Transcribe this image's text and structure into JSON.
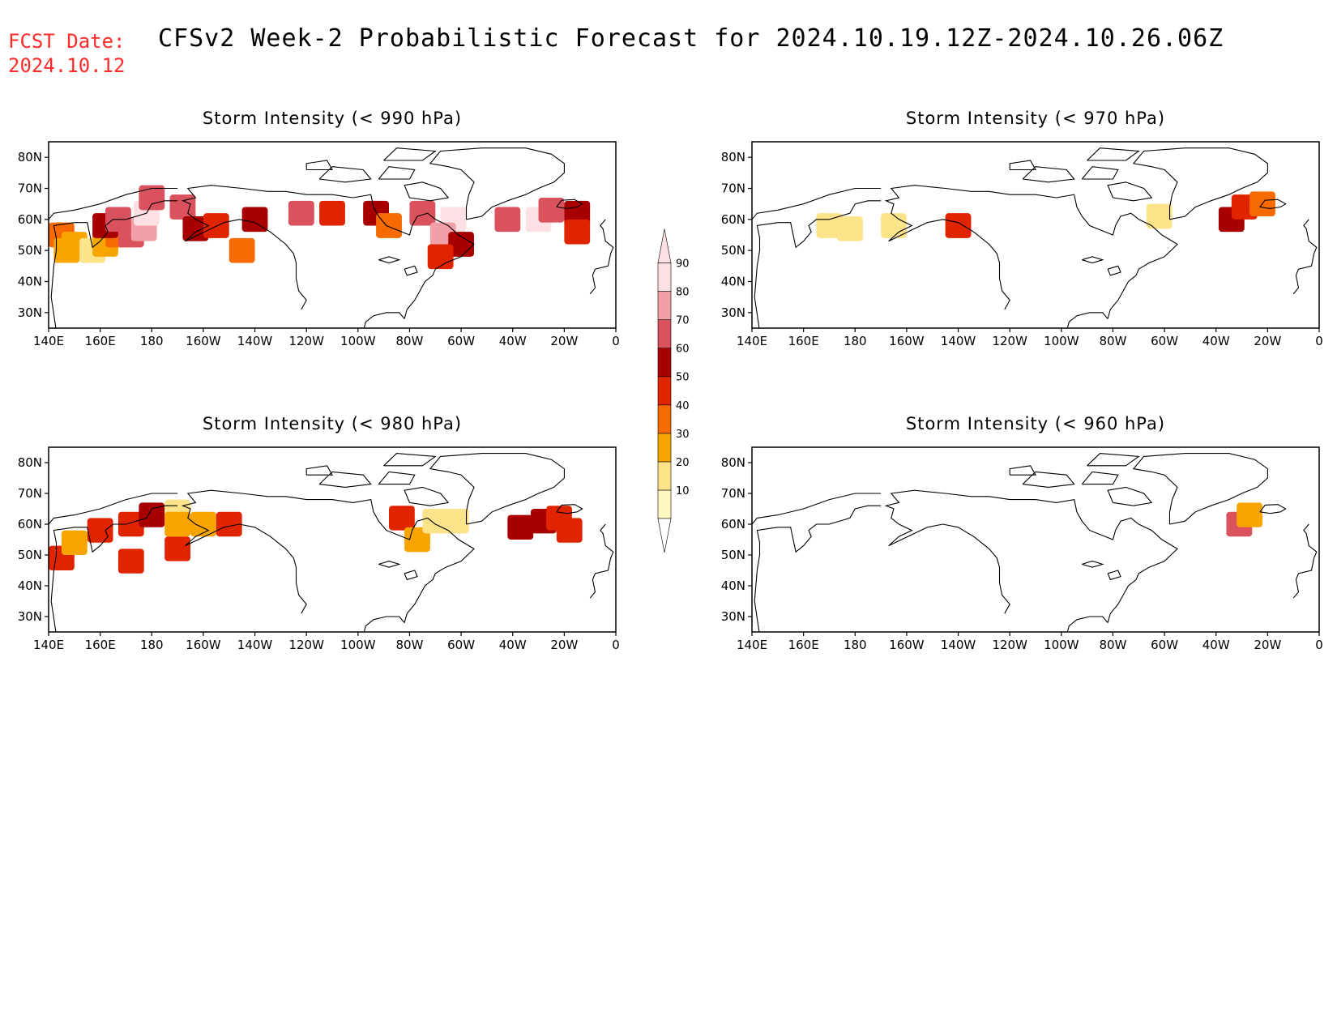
{
  "header": {
    "fcst_label": "FCST Date:",
    "fcst_date": "2024.10.12",
    "title": "CFSv2 Week-2 Probabilistic Forecast for 2024.10.19.12Z-2024.10.26.06Z"
  },
  "map_axes": {
    "lon_labels": [
      "140E",
      "160E",
      "180",
      "160W",
      "140W",
      "120W",
      "100W",
      "80W",
      "60W",
      "40W",
      "20W",
      "0"
    ],
    "lat_labels": [
      "80N",
      "70N",
      "60N",
      "50N",
      "40N",
      "30N"
    ],
    "lat_values": [
      80,
      70,
      60,
      50,
      40,
      30
    ],
    "lon_range": [
      140,
      360
    ],
    "lat_range": [
      25,
      85
    ]
  },
  "colorbar": {
    "levels": [
      "10",
      "20",
      "30",
      "40",
      "50",
      "60",
      "70",
      "80",
      "90"
    ],
    "colors": [
      "#fff7c0",
      "#fde38a",
      "#f9a500",
      "#f66a00",
      "#e12400",
      "#a80000",
      "#d9525e",
      "#f0a0a6",
      "#fde0e3"
    ]
  },
  "chart_data": [
    {
      "type": "heatmap",
      "title": "Storm Intensity (< 990 hPa)",
      "cells": [
        {
          "lon": 145,
          "lat": 55,
          "v": 3
        },
        {
          "lon": 150,
          "lat": 52,
          "v": 2
        },
        {
          "lon": 147,
          "lat": 50,
          "v": 2
        },
        {
          "lon": 157,
          "lat": 50,
          "v": 1
        },
        {
          "lon": 162,
          "lat": 52,
          "v": 2
        },
        {
          "lon": 167,
          "lat": 55,
          "v": 3
        },
        {
          "lon": 172,
          "lat": 55,
          "v": 6
        },
        {
          "lon": 177,
          "lat": 57,
          "v": 7
        },
        {
          "lon": 162,
          "lat": 58,
          "v": 5
        },
        {
          "lon": 167,
          "lat": 60,
          "v": 6
        },
        {
          "lon": 178,
          "lat": 62,
          "v": 8
        },
        {
          "lon": 180,
          "lat": 67,
          "v": 6
        },
        {
          "lon": 192,
          "lat": 64,
          "v": 6
        },
        {
          "lon": 197,
          "lat": 57,
          "v": 5
        },
        {
          "lon": 205,
          "lat": 58,
          "v": 4
        },
        {
          "lon": 220,
          "lat": 60,
          "v": 5
        },
        {
          "lon": 215,
          "lat": 50,
          "v": 3
        },
        {
          "lon": 238,
          "lat": 62,
          "v": 6
        },
        {
          "lon": 250,
          "lat": 62,
          "v": 4
        },
        {
          "lon": 267,
          "lat": 62,
          "v": 5
        },
        {
          "lon": 272,
          "lat": 58,
          "v": 3
        },
        {
          "lon": 285,
          "lat": 62,
          "v": 6
        },
        {
          "lon": 297,
          "lat": 60,
          "v": 8
        },
        {
          "lon": 293,
          "lat": 55,
          "v": 7
        },
        {
          "lon": 300,
          "lat": 52,
          "v": 5
        },
        {
          "lon": 292,
          "lat": 48,
          "v": 4
        },
        {
          "lon": 318,
          "lat": 60,
          "v": 6
        },
        {
          "lon": 330,
          "lat": 60,
          "v": 8
        },
        {
          "lon": 335,
          "lat": 63,
          "v": 6
        },
        {
          "lon": 345,
          "lat": 62,
          "v": 5
        },
        {
          "lon": 345,
          "lat": 56,
          "v": 4
        }
      ]
    },
    {
      "type": "heatmap",
      "title": "Storm Intensity (< 970 hPa)",
      "cells": [
        {
          "lon": 170,
          "lat": 58,
          "v": 1
        },
        {
          "lon": 178,
          "lat": 57,
          "v": 1
        },
        {
          "lon": 195,
          "lat": 58,
          "v": 1
        },
        {
          "lon": 220,
          "lat": 58,
          "v": 4
        },
        {
          "lon": 298,
          "lat": 61,
          "v": 1
        },
        {
          "lon": 326,
          "lat": 60,
          "v": 5
        },
        {
          "lon": 331,
          "lat": 64,
          "v": 4
        },
        {
          "lon": 338,
          "lat": 65,
          "v": 3
        }
      ]
    },
    {
      "type": "heatmap",
      "title": "Storm Intensity (< 980 hPa)",
      "cells": [
        {
          "lon": 145,
          "lat": 49,
          "v": 4
        },
        {
          "lon": 150,
          "lat": 54,
          "v": 2
        },
        {
          "lon": 160,
          "lat": 58,
          "v": 4
        },
        {
          "lon": 172,
          "lat": 60,
          "v": 4
        },
        {
          "lon": 180,
          "lat": 63,
          "v": 5
        },
        {
          "lon": 190,
          "lat": 64,
          "v": 1
        },
        {
          "lon": 190,
          "lat": 60,
          "v": 2
        },
        {
          "lon": 200,
          "lat": 60,
          "v": 2
        },
        {
          "lon": 210,
          "lat": 60,
          "v": 4
        },
        {
          "lon": 190,
          "lat": 52,
          "v": 4
        },
        {
          "lon": 172,
          "lat": 48,
          "v": 4
        },
        {
          "lon": 277,
          "lat": 62,
          "v": 4
        },
        {
          "lon": 283,
          "lat": 55,
          "v": 2
        },
        {
          "lon": 290,
          "lat": 61,
          "v": 1
        },
        {
          "lon": 298,
          "lat": 61,
          "v": 1
        },
        {
          "lon": 323,
          "lat": 59,
          "v": 5
        },
        {
          "lon": 332,
          "lat": 61,
          "v": 5
        },
        {
          "lon": 338,
          "lat": 62,
          "v": 4
        },
        {
          "lon": 342,
          "lat": 58,
          "v": 4
        }
      ]
    },
    {
      "type": "heatmap",
      "title": "Storm Intensity (< 960 hPa)",
      "cells": [
        {
          "lon": 329,
          "lat": 60,
          "v": 6
        },
        {
          "lon": 333,
          "lat": 63,
          "v": 2
        }
      ]
    }
  ]
}
